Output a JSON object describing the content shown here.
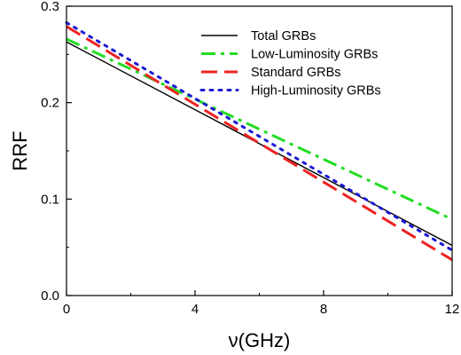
{
  "chart_data": {
    "type": "line",
    "title": "",
    "xlabel": "ν(GHz)",
    "ylabel": "RRF",
    "xlim": [
      0,
      12
    ],
    "ylim": [
      0,
      0.3
    ],
    "xticks": [
      0,
      4,
      8,
      12
    ],
    "yticks": [
      0.0,
      0.1,
      0.2,
      0.3
    ],
    "xtick_labels": [
      "0",
      "4",
      "8",
      "12"
    ],
    "ytick_labels": [
      "0.0",
      "0.1",
      "0.2",
      "0.3"
    ],
    "grid": false,
    "legend_position": "top-right",
    "series": [
      {
        "name": "Total GRBs",
        "color": "#000000",
        "style": "solid",
        "x": [
          0,
          12
        ],
        "y": [
          0.263,
          0.052
        ]
      },
      {
        "name": "Low-Luminosity GRBs",
        "color": "#22dd22",
        "style": "dash-dot",
        "x": [
          0,
          12
        ],
        "y": [
          0.266,
          0.079
        ]
      },
      {
        "name": "Standard GRBs",
        "color": "#ee2222",
        "style": "dashed",
        "x": [
          0,
          12
        ],
        "y": [
          0.279,
          0.037
        ]
      },
      {
        "name": "High-Luminosity GRBs",
        "color": "#1a1ad6",
        "style": "dotted",
        "x": [
          0,
          12
        ],
        "y": [
          0.283,
          0.047
        ]
      }
    ]
  }
}
